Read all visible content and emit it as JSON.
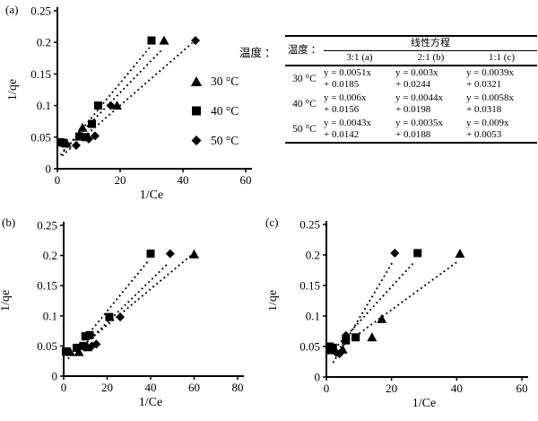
{
  "panels": {
    "a": "(a)",
    "b": "(b)",
    "c": "(c)"
  },
  "legend": {
    "items": [
      {
        "marker": "triangle",
        "label": "30 °C"
      },
      {
        "marker": "square",
        "label": "40 °C"
      },
      {
        "marker": "diamond",
        "label": "50 °C"
      }
    ]
  },
  "table": {
    "side_label": "温度 ：",
    "col0_header": "温度 ：",
    "span_header": "线性方程",
    "col_headers": [
      "3:1 (a)",
      "2:1 (b)",
      "1:1 (c)"
    ],
    "rows": [
      {
        "temp": "30 °C",
        "cells": [
          "y = 0.0051x\n+ 0.0185",
          "y = 0.003x\n+ 0.0244",
          "y = 0.0039x\n+ 0.0321"
        ]
      },
      {
        "temp": "40 °C",
        "cells": [
          "y = 0.006x\n+ 0.0156",
          "y = 0.0044x\n+ 0.0198",
          "y = 0.0058x\n+ 0.0318"
        ]
      },
      {
        "temp": "50 °C",
        "cells": [
          "y = 0.0043x\n+ 0.0142",
          "y = 0.0035x\n+ 0.0188",
          "y = 0.009x\n+ 0.0053"
        ]
      }
    ]
  },
  "marker_color": "#000000",
  "chart_data": [
    {
      "id": "a",
      "type": "scatter",
      "xlabel": "1/Ce",
      "ylabel": "1/qe",
      "xlim": [
        0,
        60
      ],
      "xticks": [
        0,
        20,
        40,
        60
      ],
      "ylim": [
        0,
        0.25
      ],
      "yticks": [
        0,
        0.05,
        0.1,
        0.15,
        0.2,
        0.25
      ],
      "grid": false,
      "legend_position": "right-inside",
      "series": [
        {
          "name": "30 °C",
          "marker": "triangle",
          "points": [
            [
              3,
              0.04
            ],
            [
              8,
              0.065
            ],
            [
              19,
              0.1
            ],
            [
              34,
              0.203
            ]
          ],
          "trend": {
            "slope": 0.0051,
            "intercept": 0.0185,
            "x_start": 2,
            "x_end": 33
          }
        },
        {
          "name": "40 °C",
          "marker": "square",
          "points": [
            [
              1,
              0.042
            ],
            [
              2,
              0.041
            ],
            [
              7,
              0.051
            ],
            [
              9,
              0.05
            ],
            [
              11,
              0.071
            ],
            [
              13,
              0.1
            ],
            [
              30,
              0.203
            ]
          ],
          "trend": {
            "slope": 0.006,
            "intercept": 0.0156,
            "x_start": 1,
            "x_end": 29.5
          }
        },
        {
          "name": "50 °C",
          "marker": "diamond",
          "points": [
            [
              6,
              0.037
            ],
            [
              10,
              0.047
            ],
            [
              12,
              0.052
            ],
            [
              17,
              0.1
            ],
            [
              44,
              0.203
            ]
          ],
          "trend": {
            "slope": 0.0043,
            "intercept": 0.0142,
            "x_start": 1.5,
            "x_end": 43
          }
        }
      ]
    },
    {
      "id": "b",
      "type": "scatter",
      "xlabel": "1/Ce",
      "ylabel": "1/qe",
      "xlim": [
        0,
        80
      ],
      "xticks": [
        0,
        20,
        40,
        60,
        80
      ],
      "ylim": [
        0,
        0.25
      ],
      "yticks": [
        0,
        0.05,
        0.1,
        0.15,
        0.2,
        0.25
      ],
      "grid": false,
      "legend_position": "none",
      "series": [
        {
          "name": "30 °C",
          "marker": "triangle",
          "points": [
            [
              3,
              0.04
            ],
            [
              7,
              0.04
            ],
            [
              11,
              0.048
            ],
            [
              60,
              0.202
            ]
          ],
          "trend": {
            "slope": 0.003,
            "intercept": 0.0244,
            "x_start": 4,
            "x_end": 59
          }
        },
        {
          "name": "40 °C",
          "marker": "square",
          "points": [
            [
              1,
              0.041
            ],
            [
              6,
              0.047
            ],
            [
              9,
              0.05
            ],
            [
              10,
              0.066
            ],
            [
              12,
              0.068
            ],
            [
              21,
              0.098
            ],
            [
              40,
              0.203
            ]
          ],
          "trend": {
            "slope": 0.0044,
            "intercept": 0.0198,
            "x_start": 2,
            "x_end": 39
          }
        },
        {
          "name": "50 °C",
          "marker": "diamond",
          "points": [
            [
              10,
              0.048
            ],
            [
              13,
              0.05
            ],
            [
              15,
              0.053
            ],
            [
              26,
              0.098
            ],
            [
              49,
              0.203
            ]
          ],
          "trend": {
            "slope": 0.0035,
            "intercept": 0.0188,
            "x_start": 6,
            "x_end": 48
          }
        }
      ]
    },
    {
      "id": "c",
      "type": "scatter",
      "xlabel": "1/Ce",
      "ylabel": "1/qe",
      "xlim": [
        0,
        60
      ],
      "xticks": [
        0,
        20,
        40,
        60
      ],
      "ylim": [
        0,
        0.25
      ],
      "yticks": [
        0,
        0.05,
        0.1,
        0.15,
        0.2,
        0.25
      ],
      "grid": false,
      "legend_position": "none",
      "series": [
        {
          "name": "30 °C",
          "marker": "triangle",
          "points": [
            [
              5,
              0.045
            ],
            [
              14,
              0.065
            ],
            [
              17,
              0.095
            ],
            [
              41,
              0.202
            ]
          ],
          "trend": {
            "slope": 0.0039,
            "intercept": 0.0321,
            "x_start": 3,
            "x_end": 40
          }
        },
        {
          "name": "40 °C",
          "marker": "square",
          "points": [
            [
              1,
              0.05
            ],
            [
              1,
              0.044
            ],
            [
              2,
              0.048
            ],
            [
              6,
              0.06
            ],
            [
              9,
              0.065
            ],
            [
              28,
              0.203
            ]
          ],
          "trend": {
            "slope": 0.0058,
            "intercept": 0.0318,
            "x_start": 1.5,
            "x_end": 27
          }
        },
        {
          "name": "50 °C",
          "marker": "diamond",
          "points": [
            [
              3,
              0.04
            ],
            [
              4,
              0.038
            ],
            [
              6,
              0.068
            ],
            [
              21,
              0.203
            ]
          ],
          "trend": {
            "slope": 0.009,
            "intercept": 0.0053,
            "x_start": 2,
            "x_end": 20.5
          }
        }
      ]
    }
  ]
}
